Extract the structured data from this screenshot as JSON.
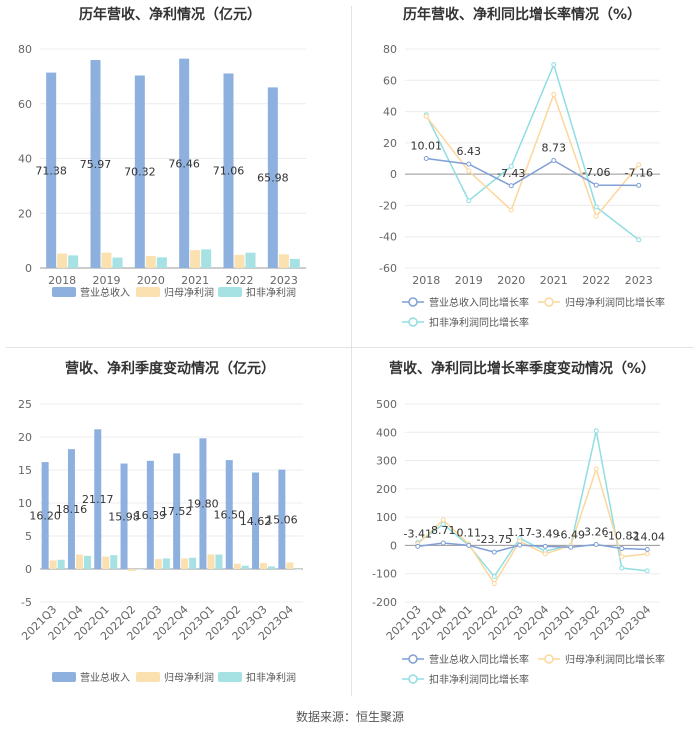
{
  "source": "数据来源：恒生聚源",
  "colors": {
    "revenue": "#8eb0df",
    "netprofit": "#fbe0b0",
    "deducted": "#a6e2e4",
    "revLine": "#7f9fd6",
    "npLine": "#fcd79c",
    "dedLine": "#8fdee3",
    "axis": "#999999",
    "grid": "#ececec",
    "label": "#333333"
  },
  "legend_bar": [
    "营业总收入",
    "归母净利润",
    "扣非净利润"
  ],
  "legend_line": [
    "营业总收入同比增长率",
    "归母净利润同比增长率",
    "扣非净利润同比增长率"
  ],
  "chart_data": [
    {
      "type": "bar",
      "title": "历年营收、净利情况（亿元）",
      "categories": [
        "2018",
        "2019",
        "2020",
        "2021",
        "2022",
        "2023"
      ],
      "ylim": [
        0,
        80
      ],
      "yticks": [
        0,
        20,
        40,
        60,
        80
      ],
      "series": [
        {
          "name": "营业总收入",
          "values": [
            71.38,
            75.97,
            70.32,
            76.46,
            71.06,
            65.98
          ],
          "labels": [
            "71.38",
            "75.97",
            "70.32",
            "76.46",
            "71.06",
            "65.98"
          ]
        },
        {
          "name": "归母净利润",
          "values": [
            5.3,
            5.6,
            4.4,
            6.5,
            4.8,
            5.0
          ]
        },
        {
          "name": "扣非净利润",
          "values": [
            4.6,
            3.8,
            3.9,
            6.8,
            5.6,
            3.3
          ]
        }
      ]
    },
    {
      "type": "line",
      "title": "历年营收、净利同比增长率情况（%）",
      "categories": [
        "2018",
        "2019",
        "2020",
        "2021",
        "2022",
        "2023"
      ],
      "ylim": [
        -60,
        80
      ],
      "yticks": [
        -60,
        -40,
        -20,
        0,
        20,
        40,
        60,
        80
      ],
      "series": [
        {
          "name": "营业总收入同比增长率",
          "values": [
            10.01,
            6.43,
            -7.43,
            8.73,
            -7.06,
            -7.16
          ],
          "labels": [
            "10.01",
            "6.43",
            "-7.43",
            "8.73",
            "-7.06",
            "-7.16"
          ]
        },
        {
          "name": "归母净利润同比增长率",
          "values": [
            37,
            2,
            -23,
            51,
            -27,
            6
          ]
        },
        {
          "name": "扣非净利润同比增长率",
          "values": [
            38,
            -17,
            5,
            70,
            -21,
            -42
          ]
        }
      ]
    },
    {
      "type": "bar",
      "title": "营收、净利季度变动情况（亿元）",
      "categories": [
        "2021Q3",
        "2021Q4",
        "2022Q1",
        "2022Q2",
        "2022Q3",
        "2022Q4",
        "2023Q1",
        "2023Q2",
        "2023Q3",
        "2023Q4"
      ],
      "ylim": [
        -5,
        25
      ],
      "yticks": [
        -5,
        0,
        5,
        10,
        15,
        20,
        25
      ],
      "series": [
        {
          "name": "营业总收入",
          "values": [
            16.2,
            18.16,
            21.17,
            15.98,
            16.39,
            17.52,
            19.8,
            16.5,
            14.62,
            15.06
          ],
          "labels": [
            "16.20",
            "18.16",
            "21.17",
            "15.98",
            "16.39",
            "17.52",
            "19.80",
            "16.50",
            "14.62",
            "15.06"
          ]
        },
        {
          "name": "归母净利润",
          "values": [
            1.3,
            2.2,
            1.9,
            -0.3,
            1.5,
            1.6,
            2.2,
            0.8,
            0.9,
            1.0
          ]
        },
        {
          "name": "扣非净利润",
          "values": [
            1.4,
            2.0,
            2.1,
            0.0,
            1.6,
            1.7,
            2.2,
            0.5,
            0.4,
            0.0
          ]
        }
      ]
    },
    {
      "type": "line",
      "title": "营收、净利同比增长率季度变动情况（%）",
      "categories": [
        "2021Q3",
        "2021Q4",
        "2022Q1",
        "2022Q2",
        "2022Q3",
        "2022Q4",
        "2023Q1",
        "2023Q2",
        "2023Q3",
        "2023Q4"
      ],
      "ylim": [
        -200,
        500
      ],
      "yticks": [
        -200,
        -100,
        0,
        100,
        200,
        300,
        400,
        500
      ],
      "series": [
        {
          "name": "营业总收入同比增长率",
          "values": [
            -3.41,
            8.71,
            0.11,
            -23.75,
            1.17,
            -3.49,
            -6.49,
            3.26,
            -10.82,
            -14.04
          ],
          "labels": [
            "-3.41",
            "8.71",
            "0.11",
            "-23.75",
            "1.17",
            "-3.49",
            "-6.49",
            "3.26",
            "-10.82",
            "-14.04"
          ]
        },
        {
          "name": "归母净利润同比增长率",
          "values": [
            5,
            90,
            5,
            -135,
            15,
            -30,
            0,
            270,
            -40,
            -30
          ]
        },
        {
          "name": "扣非净利润同比增长率",
          "values": [
            10,
            75,
            0,
            -110,
            25,
            -20,
            0,
            405,
            -80,
            -90
          ]
        }
      ]
    }
  ]
}
